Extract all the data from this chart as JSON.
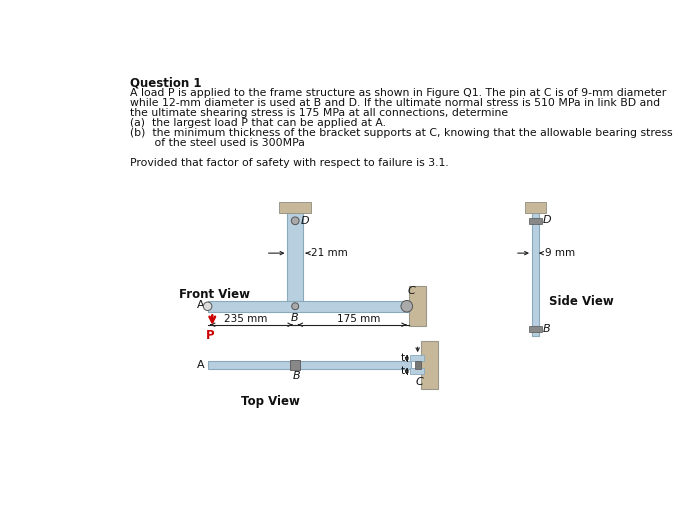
{
  "bg_color": "#ffffff",
  "title": "Question 1",
  "body_lines": [
    "A load P is applied to the frame structure as shown in Figure Q1. The pin at C is of 9-mm diameter",
    "while 12-mm diameter is used at B and D. If the ultimate normal stress is 510 MPa in link BD and",
    "the ultimate shearing stress is 175 MPa at all connections, determine",
    "(a)  the largest load P that can be applied at A.",
    "(b)  the minimum thickness of the bracket supports at C, knowing that the allowable bearing stress",
    "       of the steel used is 300MPa",
    "",
    "Provided that factor of safety with respect to failure is 3.1."
  ],
  "front_view_label": "Front View",
  "side_view_label": "Side View",
  "top_view_label": "Top View",
  "dim_21mm": "21 mm",
  "dim_9mm": "9 mm",
  "dim_235mm": "235 mm",
  "dim_175mm": "175 mm",
  "label_A": "A",
  "label_B": "B",
  "label_C": "C",
  "label_D": "D",
  "label_P": "P",
  "label_t": "t",
  "steel_color": "#b8cfe0",
  "steel_edge": "#8aaabb",
  "wall_color": "#c8b89a",
  "wall_edge": "#999888",
  "arrow_color": "#cc0000",
  "dim_color": "#222222",
  "text_color": "#111111",
  "pin_fill": "#aaaaaa",
  "pin_edge": "#555555"
}
